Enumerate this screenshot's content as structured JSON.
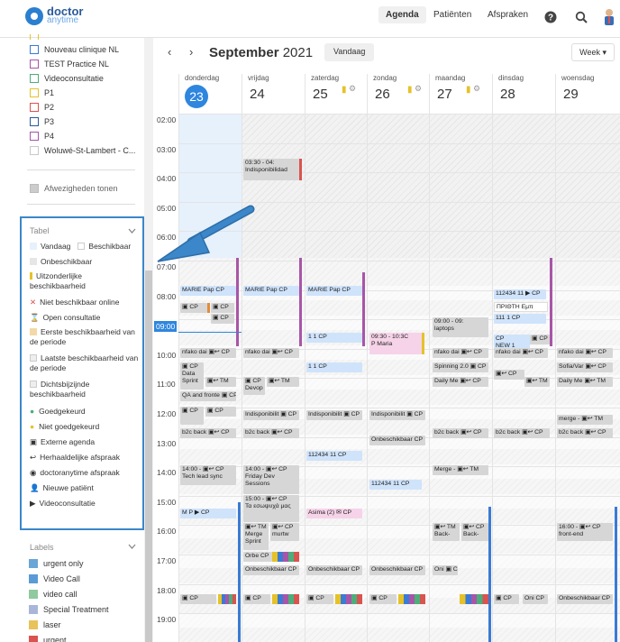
{
  "app": {
    "logo_line1": "doctor",
    "logo_line2": "anytime",
    "nav": [
      "Agenda",
      "Patiënten",
      "Afspraken"
    ]
  },
  "sidebar": {
    "practices": [
      {
        "label": "Nouveau clinique NL",
        "color": "#3a7bd5"
      },
      {
        "label": "TEST Practice NL",
        "color": "#a855a8"
      },
      {
        "label": "Videoconsultatie",
        "color": "#4cae7a"
      },
      {
        "label": "P1",
        "color": "#e6c229"
      },
      {
        "label": "P2",
        "color": "#d9534f"
      },
      {
        "label": "P3",
        "color": "#2b5a9a"
      },
      {
        "label": "P4",
        "color": "#a855a8"
      },
      {
        "label": "Woluwé-St-Lambert - C...",
        "color": "#c8c8c8"
      }
    ],
    "absences_label": "Afwezigheden tonen",
    "tabel": {
      "title": "Tabel",
      "rows": [
        "Vandaag",
        "Beschikbaar",
        "Onbeschikbaar",
        "Uitzonderlijke beschikbaarheid",
        "Niet beschikbaar online",
        "Open consultatie",
        "Eerste beschikbaarheid van de periode",
        "Laatste beschikbaarheid van de periode",
        "Dichtsbijzijnde beschikbaarheid",
        "Goedgekeurd",
        "Niet goedgekeurd",
        "Externe agenda",
        "Herhaaldelijke afspraak",
        "doctoranytime afspraak",
        "Nieuwe patiënt",
        "Videoconsultatie"
      ]
    },
    "labels": {
      "title": "Labels",
      "items": [
        {
          "label": "urgent only",
          "color": "#6aa6d6"
        },
        {
          "label": "Video Call",
          "color": "#5b9bd5"
        },
        {
          "label": "video call",
          "color": "#8fc9a0"
        },
        {
          "label": "Special Treatment",
          "color": "#a9b6d9"
        },
        {
          "label": "laser",
          "color": "#e8c25a"
        },
        {
          "label": "urgent",
          "color": "#d9534f"
        }
      ]
    }
  },
  "calendar": {
    "month": "September",
    "year": "2021",
    "today_button": "Vandaag",
    "view_button": "Week",
    "days": [
      {
        "name": "donderdag",
        "num": "23"
      },
      {
        "name": "vrijdag",
        "num": "24"
      },
      {
        "name": "zaterdag",
        "num": "25"
      },
      {
        "name": "zondag",
        "num": "26"
      },
      {
        "name": "maandag",
        "num": "27"
      },
      {
        "name": "dinsdag",
        "num": "28"
      },
      {
        "name": "woensdag",
        "num": "29"
      }
    ],
    "hours": [
      "02:00",
      "03:00",
      "04:00",
      "05:00",
      "06:00",
      "07:00",
      "08:00",
      "09:00",
      "10:00",
      "11:00",
      "12:00",
      "13:00",
      "14:00",
      "15:00",
      "16:00",
      "17:00",
      "18:00",
      "19:00"
    ],
    "events": {
      "e1": "03:30 - 04:",
      "e1b": "Indisponibilidad",
      "e2": "MARIE Pap",
      "e3": "09:30 - 10:3C",
      "e3b": "P Maria",
      "e4": "09:00 - 09:",
      "e4b": "laptops",
      "e5": "nfako dai",
      "e6": "Data",
      "e6b": "Sprint",
      "e7": "QA and fronte",
      "e8": "Indisponibilit",
      "e9": "b2c back",
      "e10": "14:00 -",
      "e10b": "Tech lead sync",
      "e11": "14:00 -",
      "e11b": "Friday Dev",
      "e11c": "Sessions",
      "e12": "15:00 -",
      "e12b": "Τα εσωψυχά μας",
      "e13": "Onbeschikbaar",
      "e14": "Spinning 2.0",
      "e15": "Daily Me",
      "e16": "merge -",
      "e17": "Merge -",
      "e18": "16:00 -",
      "e18b": "front-end",
      "e19": "Merge",
      "e19b": "Sprint",
      "e20": "murtw",
      "e21": "Back-",
      "e22": "Sofia/Var",
      "e23": "112434 11",
      "e24": "ΠΡΙΘΤΗ Εμπ",
      "e25": "111 1",
      "e26": "NEW 1",
      "e27": "Devop",
      "e28": "Orbe",
      "e29": "Asima (2)",
      "e30": "M P",
      "e31": "1 1",
      "e32": "CP",
      "e33": "TM",
      "e34": "Oni",
      "e35": "b2c back"
    }
  }
}
